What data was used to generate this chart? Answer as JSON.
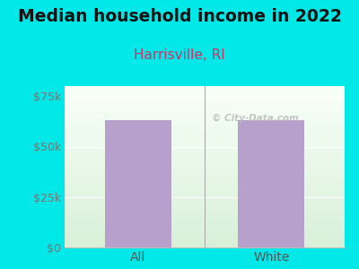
{
  "title": "Median household income in 2022",
  "subtitle": "Harrisville, RI",
  "categories": [
    "All",
    "White"
  ],
  "values": [
    63000,
    63000
  ],
  "bar_color": "#b8a0cc",
  "background_color": "#00e8e8",
  "yticks": [
    0,
    25000,
    50000,
    75000
  ],
  "ytick_labels": [
    "$0",
    "$25k",
    "$50k",
    "$75k"
  ],
  "ylim": [
    0,
    80000
  ],
  "title_fontsize": 13.5,
  "subtitle_fontsize": 11,
  "subtitle_color": "#cc3366",
  "tick_color": "#777777",
  "tick_fontsize": 9,
  "xtick_fontsize": 10,
  "watermark_text": "© City-Data.com",
  "xlabel_color": "#555555",
  "separator_color": "#aaaaaa",
  "plot_bg_color_bottom": "#d8f0d8",
  "plot_bg_color_top": "#f8fff8"
}
